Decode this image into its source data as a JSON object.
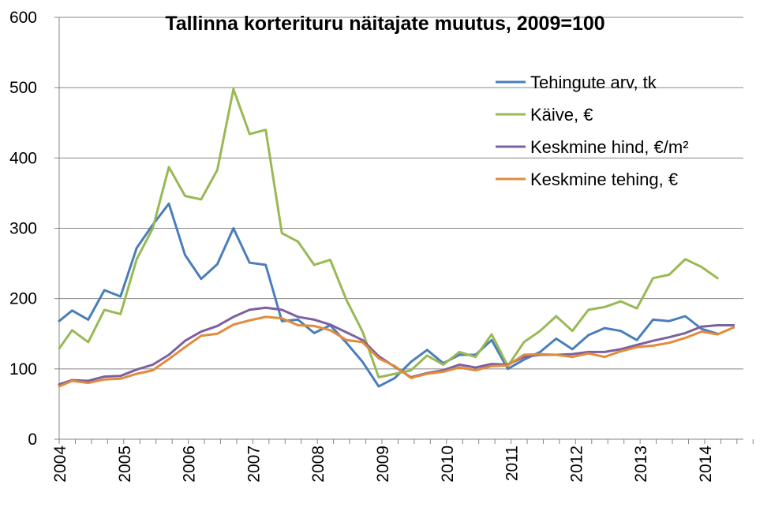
{
  "chart_data": {
    "type": "line",
    "title": "Tallinna korterituru näitajate muutus, 2009=100",
    "xlabel": "",
    "ylabel": "",
    "ylim": [
      0,
      600
    ],
    "yticks": [
      "0",
      "100",
      "200",
      "300",
      "400",
      "500",
      "600"
    ],
    "xlim": [
      2004,
      2014.6
    ],
    "xticks": [
      "2004",
      "2005",
      "2006",
      "2007",
      "2008",
      "2009",
      "2010",
      "2011",
      "2012",
      "2013",
      "2014"
    ],
    "grid": "horizontal",
    "legend_position": "top-right",
    "series": [
      {
        "name": "Tehingute arv, tk",
        "color": "#4a7ebb",
        "points": [
          [
            2004.0,
            168
          ],
          [
            2004.2,
            183
          ],
          [
            2004.45,
            170
          ],
          [
            2004.7,
            212
          ],
          [
            2004.95,
            203
          ],
          [
            2005.2,
            272
          ],
          [
            2005.45,
            305
          ],
          [
            2005.7,
            335
          ],
          [
            2005.95,
            262
          ],
          [
            2006.2,
            228
          ],
          [
            2006.45,
            249
          ],
          [
            2006.7,
            300
          ],
          [
            2006.95,
            251
          ],
          [
            2007.2,
            248
          ],
          [
            2007.45,
            168
          ],
          [
            2007.7,
            170
          ],
          [
            2007.95,
            151
          ],
          [
            2008.2,
            162
          ],
          [
            2008.45,
            137
          ],
          [
            2008.7,
            110
          ],
          [
            2008.95,
            75
          ],
          [
            2009.2,
            87
          ],
          [
            2009.45,
            110
          ],
          [
            2009.7,
            127
          ],
          [
            2009.95,
            108
          ],
          [
            2010.2,
            120
          ],
          [
            2010.45,
            120
          ],
          [
            2010.7,
            141
          ],
          [
            2010.95,
            100
          ],
          [
            2011.2,
            113
          ],
          [
            2011.45,
            124
          ],
          [
            2011.7,
            143
          ],
          [
            2011.95,
            128
          ],
          [
            2012.2,
            148
          ],
          [
            2012.45,
            158
          ],
          [
            2012.7,
            154
          ],
          [
            2012.95,
            141
          ],
          [
            2013.2,
            170
          ],
          [
            2013.45,
            168
          ],
          [
            2013.7,
            175
          ],
          [
            2013.95,
            157
          ],
          [
            2014.2,
            150
          ]
        ]
      },
      {
        "name": "Käive, €",
        "color": "#98b954",
        "points": [
          [
            2004.0,
            129
          ],
          [
            2004.2,
            155
          ],
          [
            2004.45,
            138
          ],
          [
            2004.7,
            184
          ],
          [
            2004.95,
            178
          ],
          [
            2005.2,
            256
          ],
          [
            2005.45,
            300
          ],
          [
            2005.7,
            387
          ],
          [
            2005.95,
            346
          ],
          [
            2006.2,
            341
          ],
          [
            2006.45,
            383
          ],
          [
            2006.7,
            498
          ],
          [
            2006.95,
            434
          ],
          [
            2007.2,
            440
          ],
          [
            2007.45,
            293
          ],
          [
            2007.7,
            281
          ],
          [
            2007.95,
            248
          ],
          [
            2008.2,
            255
          ],
          [
            2008.45,
            198
          ],
          [
            2008.7,
            153
          ],
          [
            2008.95,
            88
          ],
          [
            2009.2,
            93
          ],
          [
            2009.45,
            98
          ],
          [
            2009.7,
            119
          ],
          [
            2009.95,
            106
          ],
          [
            2010.2,
            124
          ],
          [
            2010.45,
            117
          ],
          [
            2010.7,
            149
          ],
          [
            2010.95,
            104
          ],
          [
            2011.2,
            138
          ],
          [
            2011.45,
            154
          ],
          [
            2011.7,
            175
          ],
          [
            2011.95,
            154
          ],
          [
            2012.2,
            184
          ],
          [
            2012.45,
            188
          ],
          [
            2012.7,
            196
          ],
          [
            2012.95,
            186
          ],
          [
            2013.2,
            229
          ],
          [
            2013.45,
            234
          ],
          [
            2013.7,
            256
          ],
          [
            2013.95,
            245
          ],
          [
            2014.2,
            229
          ]
        ]
      },
      {
        "name": "Keskmine hind, €/m²",
        "color": "#7d60a0",
        "points": [
          [
            2004.0,
            78
          ],
          [
            2004.2,
            84
          ],
          [
            2004.45,
            83
          ],
          [
            2004.7,
            89
          ],
          [
            2004.95,
            90
          ],
          [
            2005.2,
            99
          ],
          [
            2005.45,
            106
          ],
          [
            2005.7,
            120
          ],
          [
            2005.95,
            140
          ],
          [
            2006.2,
            153
          ],
          [
            2006.45,
            161
          ],
          [
            2006.7,
            174
          ],
          [
            2006.95,
            184
          ],
          [
            2007.2,
            187
          ],
          [
            2007.45,
            184
          ],
          [
            2007.7,
            174
          ],
          [
            2007.95,
            170
          ],
          [
            2008.2,
            163
          ],
          [
            2008.45,
            152
          ],
          [
            2008.7,
            141
          ],
          [
            2008.95,
            118
          ],
          [
            2009.2,
            103
          ],
          [
            2009.45,
            88
          ],
          [
            2009.7,
            94
          ],
          [
            2009.95,
            98
          ],
          [
            2010.2,
            106
          ],
          [
            2010.45,
            102
          ],
          [
            2010.7,
            107
          ],
          [
            2010.95,
            106
          ],
          [
            2011.2,
            117
          ],
          [
            2011.45,
            120
          ],
          [
            2011.7,
            120
          ],
          [
            2011.95,
            121
          ],
          [
            2012.2,
            124
          ],
          [
            2012.45,
            124
          ],
          [
            2012.7,
            128
          ],
          [
            2012.95,
            134
          ],
          [
            2013.2,
            140
          ],
          [
            2013.45,
            145
          ],
          [
            2013.7,
            151
          ],
          [
            2013.95,
            160
          ],
          [
            2014.2,
            162
          ],
          [
            2014.45,
            162
          ]
        ]
      },
      {
        "name": "Keskmine tehing, €",
        "color": "#e28b3b",
        "points": [
          [
            2004.0,
            75
          ],
          [
            2004.2,
            83
          ],
          [
            2004.45,
            80
          ],
          [
            2004.7,
            85
          ],
          [
            2004.95,
            86
          ],
          [
            2005.2,
            93
          ],
          [
            2005.45,
            98
          ],
          [
            2005.7,
            114
          ],
          [
            2005.95,
            131
          ],
          [
            2006.2,
            147
          ],
          [
            2006.45,
            150
          ],
          [
            2006.7,
            163
          ],
          [
            2006.95,
            169
          ],
          [
            2007.2,
            174
          ],
          [
            2007.45,
            172
          ],
          [
            2007.7,
            162
          ],
          [
            2007.95,
            161
          ],
          [
            2008.2,
            155
          ],
          [
            2008.45,
            141
          ],
          [
            2008.7,
            138
          ],
          [
            2008.95,
            115
          ],
          [
            2009.2,
            104
          ],
          [
            2009.45,
            87
          ],
          [
            2009.7,
            93
          ],
          [
            2009.95,
            96
          ],
          [
            2010.2,
            102
          ],
          [
            2010.45,
            98
          ],
          [
            2010.7,
            104
          ],
          [
            2010.95,
            105
          ],
          [
            2011.2,
            120
          ],
          [
            2011.45,
            121
          ],
          [
            2011.7,
            120
          ],
          [
            2011.95,
            117
          ],
          [
            2012.2,
            122
          ],
          [
            2012.45,
            117
          ],
          [
            2012.7,
            125
          ],
          [
            2012.95,
            131
          ],
          [
            2013.2,
            133
          ],
          [
            2013.45,
            137
          ],
          [
            2013.7,
            144
          ],
          [
            2013.95,
            153
          ],
          [
            2014.2,
            149
          ],
          [
            2014.45,
            159
          ]
        ]
      }
    ]
  }
}
